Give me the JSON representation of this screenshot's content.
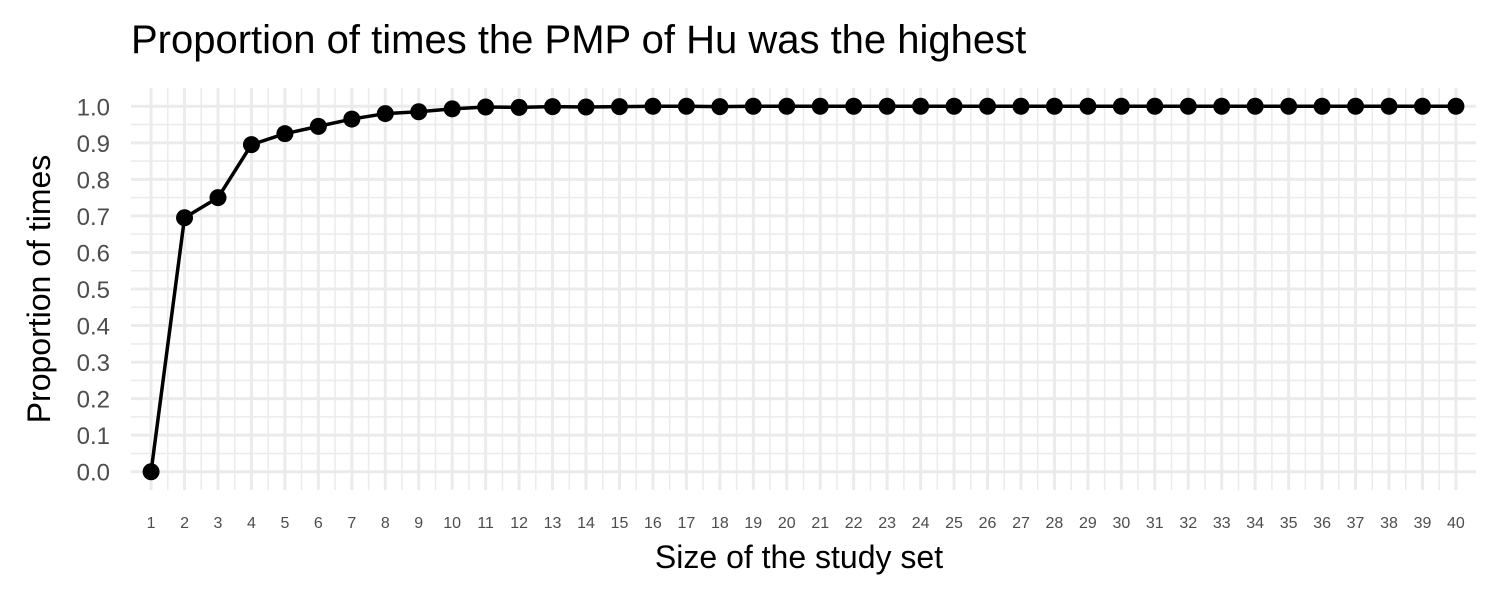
{
  "chart_data": {
    "type": "line",
    "title": "Proportion of times the PMP of Hu was the highest",
    "xlabel": "Size of the study set",
    "ylabel": "Proportion of times",
    "x": [
      1,
      2,
      3,
      4,
      5,
      6,
      7,
      8,
      9,
      10,
      11,
      12,
      13,
      14,
      15,
      16,
      17,
      18,
      19,
      20,
      21,
      22,
      23,
      24,
      25,
      26,
      27,
      28,
      29,
      30,
      31,
      32,
      33,
      34,
      35,
      36,
      37,
      38,
      39,
      40
    ],
    "x_tick_labels": [
      "1",
      "2",
      "3",
      "4",
      "5",
      "6",
      "7",
      "8",
      "9",
      "10",
      "11",
      "12",
      "13",
      "14",
      "15",
      "16",
      "17",
      "18",
      "19",
      "20",
      "21",
      "22",
      "23",
      "24",
      "25",
      "26",
      "27",
      "28",
      "29",
      "30",
      "31",
      "32",
      "33",
      "34",
      "35",
      "36",
      "37",
      "38",
      "39",
      "40"
    ],
    "series": [
      {
        "values": [
          0.0,
          0.695,
          0.75,
          0.895,
          0.925,
          0.945,
          0.965,
          0.98,
          0.985,
          0.993,
          0.998,
          0.997,
          0.999,
          0.998,
          0.999,
          1.0,
          1.0,
          0.999,
          1.0,
          1.0,
          1.0,
          1.0,
          1.0,
          1.0,
          1.0,
          1.0,
          1.0,
          1.0,
          1.0,
          1.0,
          1.0,
          1.0,
          1.0,
          1.0,
          1.0,
          1.0,
          1.0,
          1.0,
          1.0,
          1.0
        ],
        "color": "#000000"
      }
    ],
    "y_tick_labels": [
      "0.0",
      "0.1",
      "0.2",
      "0.3",
      "0.4",
      "0.5",
      "0.6",
      "0.7",
      "0.8",
      "0.9",
      "1.0"
    ],
    "y_ticks": [
      0.0,
      0.1,
      0.2,
      0.3,
      0.4,
      0.5,
      0.6,
      0.7,
      0.8,
      0.9,
      1.0
    ],
    "xlim": [
      0.4,
      40.6
    ],
    "ylim": [
      -0.05,
      1.05
    ],
    "grid": true,
    "grid_color": "#ebebeb",
    "background": "#ffffff"
  }
}
